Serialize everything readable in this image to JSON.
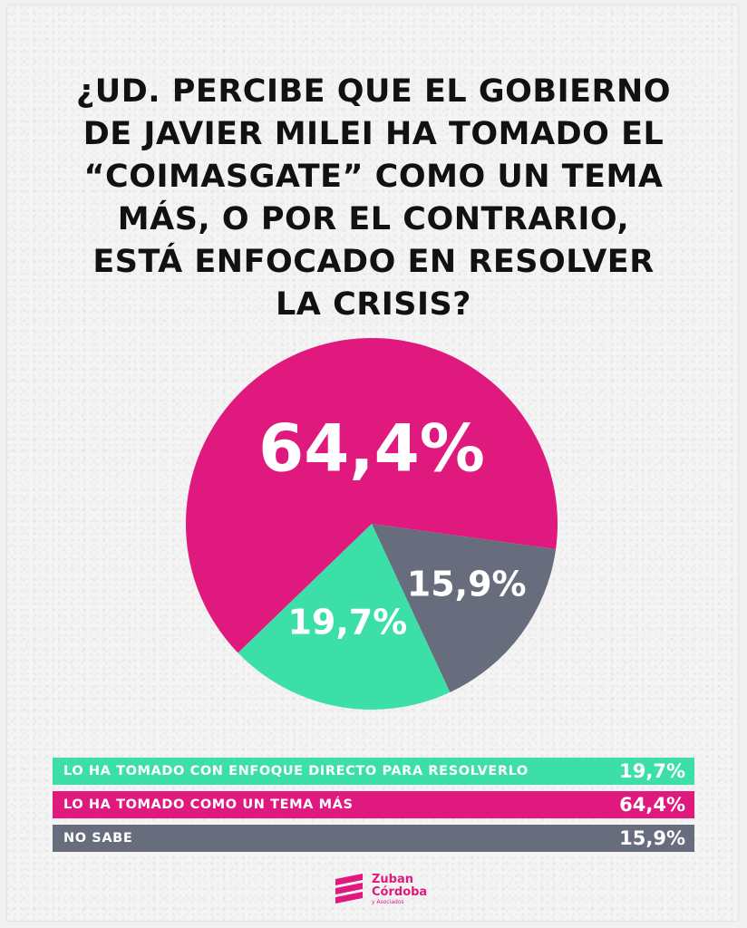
{
  "title": "¿UD. PERCIBE QUE EL GOBIERNO\nDE JAVIER MILEI HA TOMADO EL\n“COIMASGATE” COMO UN TEMA\nMÁS, O POR EL CONTRARIO,\nESTÁ ENFOCADO EN RESOLVER\nLA CRISIS?",
  "chart_data": {
    "type": "pie",
    "title": "¿UD. PERCIBE QUE EL GOBIERNO DE JAVIER MILEI HA TOMADO EL “COIMASGATE” COMO UN TEMA MÁS, O POR EL CONTRARIO, ESTÁ ENFOCADO EN RESOLVER LA CRISIS?",
    "slices": [
      {
        "label": "LO HA TOMADO COMO UN TEMA MÁS",
        "value": 64.4,
        "display": "64,4%",
        "color": "#e0197e"
      },
      {
        "label": "NO SABE",
        "value": 15.9,
        "display": "15,9%",
        "color": "#686d7e"
      },
      {
        "label": "LO HA TOMADO CON ENFOQUE DIRECTO PARA RESOLVERLO",
        "value": 19.7,
        "display": "19,7%",
        "color": "#3ddfa9"
      }
    ],
    "legend": [
      {
        "label": "LO HA TOMADO CON ENFOQUE DIRECTO PARA RESOLVERLO",
        "display": "19,7%",
        "color": "#3ddfa9"
      },
      {
        "label": "LO HA TOMADO COMO UN TEMA MÁS",
        "display": "64,4%",
        "color": "#e0197e"
      },
      {
        "label": "NO SABE",
        "display": "15,9%",
        "color": "#686d7e"
      }
    ],
    "legend_placement": "bottom"
  },
  "logo": {
    "line1": "Zuban",
    "line2": "Córdoba",
    "line3": "y Asociados",
    "color": "#e0197e"
  }
}
